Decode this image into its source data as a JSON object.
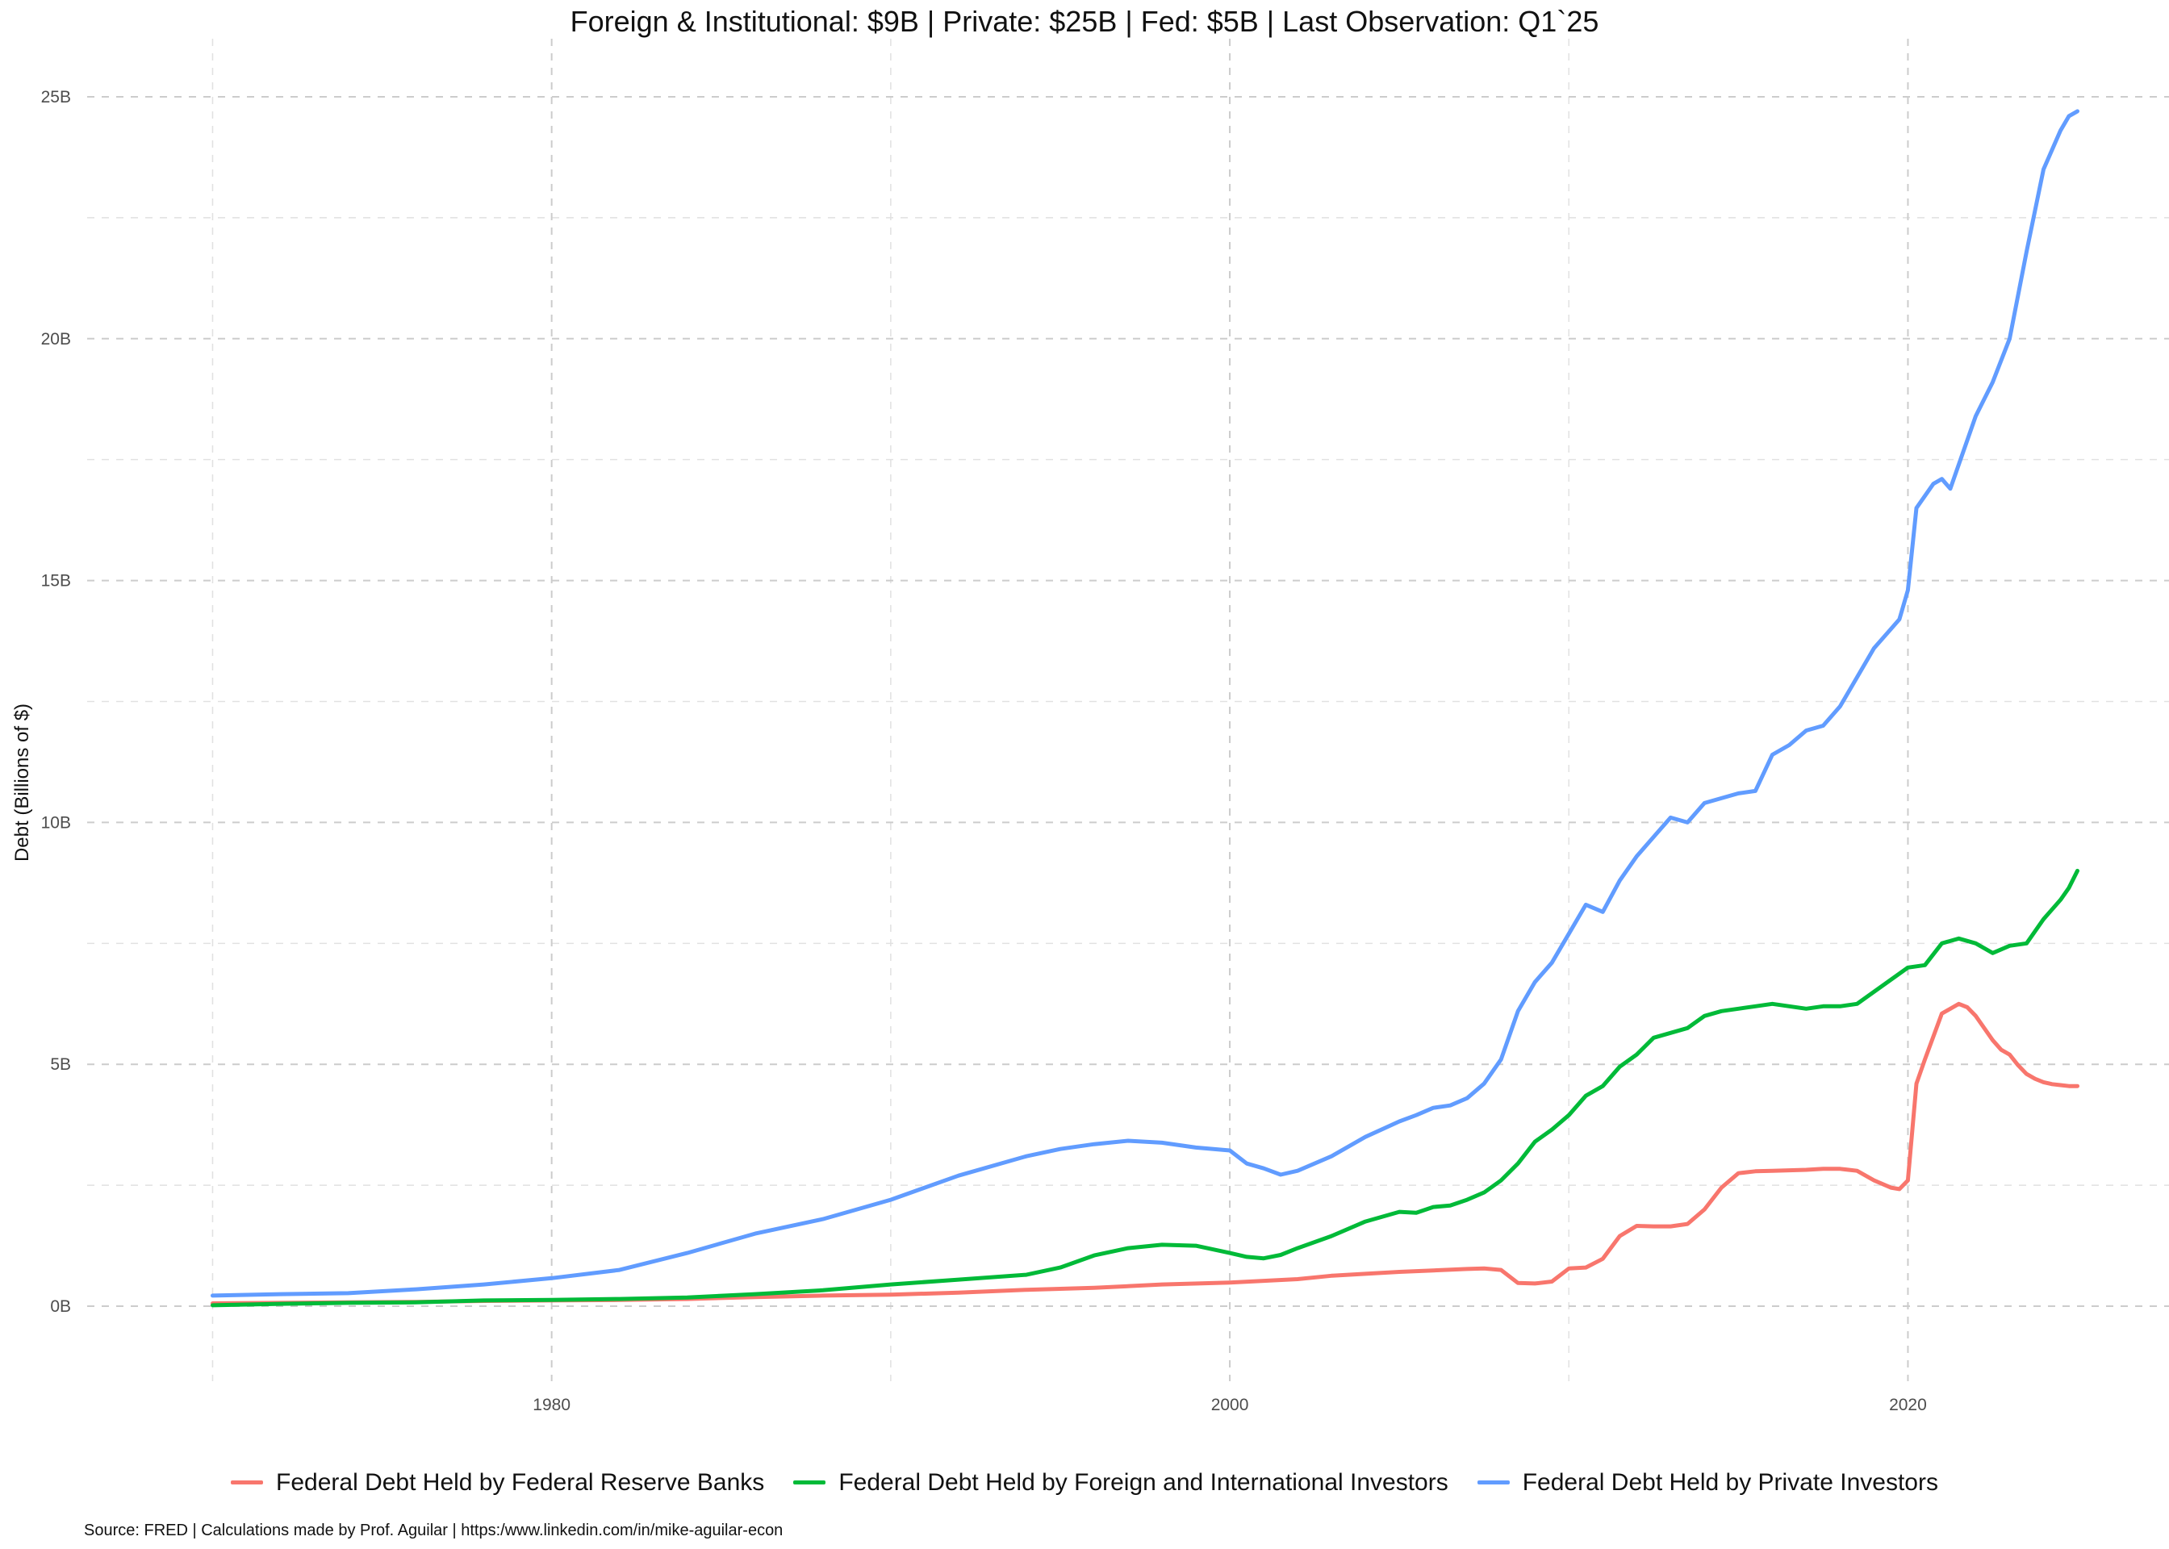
{
  "chart_data": {
    "type": "line",
    "title": "Foreign & Institutional: $9B | Private: $25B | Fed: $5B | Last Observation: Q1`25",
    "xlabel": "",
    "ylabel": "Debt (Billions of $)",
    "xlim": [
      1966.3,
      2027.7
    ],
    "ylim": [
      -1.55,
      26.2
    ],
    "grid": true,
    "legend_position": "bottom",
    "x_ticks": [
      1980,
      2000,
      2020
    ],
    "x_tick_labels": [
      "1980",
      "2000",
      "2020"
    ],
    "y_ticks": [
      0,
      5,
      10,
      15,
      20,
      25
    ],
    "y_tick_labels": [
      "0B",
      "5B",
      "10B",
      "15B",
      "20B",
      "25B"
    ],
    "caption": "Source: FRED | Calculations made by Prof. Aguilar | https:/www.linkedin.com/in/mike-aguilar-econ",
    "series": [
      {
        "name": "Federal Debt Held by Federal Reserve Banks",
        "color": "#F8766D",
        "x": [
          1970,
          1972,
          1974,
          1976,
          1978,
          1980,
          1982,
          1984,
          1986,
          1988,
          1990,
          1992,
          1994,
          1996,
          1998,
          2000,
          2002,
          2003,
          2004,
          2005,
          2006,
          2007,
          2007.5,
          2008,
          2008.5,
          2009,
          2009.5,
          2010,
          2010.5,
          2011,
          2011.5,
          2012,
          2012.5,
          2013,
          2013.5,
          2014,
          2014.5,
          2015,
          2015.5,
          2016,
          2016.5,
          2017,
          2017.5,
          2018,
          2018.5,
          2019,
          2019.5,
          2019.75,
          2020,
          2020.25,
          2020.5,
          2021,
          2021.5,
          2021.75,
          2022,
          2022.25,
          2022.5,
          2022.75,
          2023,
          2023.25,
          2023.5,
          2023.75,
          2024,
          2024.25,
          2024.5,
          2024.75,
          2025
        ],
        "values": [
          0.06,
          0.07,
          0.08,
          0.09,
          0.11,
          0.12,
          0.13,
          0.15,
          0.19,
          0.22,
          0.24,
          0.28,
          0.34,
          0.38,
          0.45,
          0.49,
          0.56,
          0.63,
          0.67,
          0.71,
          0.74,
          0.77,
          0.78,
          0.75,
          0.48,
          0.47,
          0.51,
          0.78,
          0.8,
          0.98,
          1.45,
          1.66,
          1.65,
          1.65,
          1.7,
          2.0,
          2.45,
          2.75,
          2.79,
          2.8,
          2.81,
          2.82,
          2.84,
          2.84,
          2.8,
          2.6,
          2.45,
          2.42,
          2.6,
          4.6,
          5.1,
          6.05,
          6.25,
          6.18,
          6.0,
          5.75,
          5.5,
          5.3,
          5.2,
          4.98,
          4.8,
          4.7,
          4.63,
          4.59,
          4.57,
          4.55,
          4.55
        ]
      },
      {
        "name": "Federal Debt Held by Foreign and International Investors",
        "color": "#00BA38",
        "x": [
          1970,
          1972,
          1974,
          1976,
          1978,
          1980,
          1982,
          1984,
          1986,
          1988,
          1990,
          1992,
          1994,
          1995,
          1996,
          1997,
          1998,
          1999,
          2000,
          2000.5,
          2001,
          2001.5,
          2002,
          2003,
          2004,
          2005,
          2005.5,
          2006,
          2006.5,
          2007,
          2007.5,
          2008,
          2008.5,
          2009,
          2009.5,
          2010,
          2010.5,
          2011,
          2011.5,
          2012,
          2012.5,
          2013,
          2013.5,
          2014,
          2014.5,
          2015,
          2015.5,
          2016,
          2016.5,
          2017,
          2017.5,
          2018,
          2018.5,
          2019,
          2019.5,
          2020,
          2020.5,
          2021,
          2021.5,
          2022,
          2022.5,
          2023,
          2023.5,
          2024,
          2024.5,
          2024.75,
          2025
        ],
        "values": [
          0.02,
          0.05,
          0.07,
          0.08,
          0.12,
          0.13,
          0.15,
          0.18,
          0.25,
          0.33,
          0.45,
          0.55,
          0.65,
          0.8,
          1.05,
          1.2,
          1.27,
          1.25,
          1.1,
          1.02,
          0.99,
          1.06,
          1.2,
          1.45,
          1.75,
          1.95,
          1.93,
          2.05,
          2.08,
          2.2,
          2.35,
          2.6,
          2.95,
          3.4,
          3.65,
          3.95,
          4.35,
          4.55,
          4.95,
          5.2,
          5.55,
          5.65,
          5.75,
          6.0,
          6.1,
          6.15,
          6.2,
          6.25,
          6.2,
          6.15,
          6.2,
          6.2,
          6.25,
          6.5,
          6.75,
          7.0,
          7.05,
          7.5,
          7.6,
          7.5,
          7.3,
          7.45,
          7.5,
          8.0,
          8.4,
          8.65,
          9.0
        ]
      },
      {
        "name": "Federal Debt Held by Private Investors",
        "color": "#619CFF",
        "x": [
          1970,
          1972,
          1974,
          1976,
          1978,
          1980,
          1982,
          1984,
          1986,
          1988,
          1990,
          1992,
          1994,
          1995,
          1996,
          1997,
          1998,
          1999,
          2000,
          2000.5,
          2001,
          2001.5,
          2002,
          2003,
          2004,
          2005,
          2005.5,
          2006,
          2006.5,
          2007,
          2007.5,
          2008,
          2008.5,
          2009,
          2009.5,
          2010,
          2010.5,
          2011,
          2011.5,
          2012,
          2012.5,
          2013,
          2013.5,
          2014,
          2014.5,
          2015,
          2015.5,
          2016,
          2016.5,
          2017,
          2017.5,
          2018,
          2018.5,
          2019,
          2019.5,
          2019.75,
          2020,
          2020.25,
          2020.75,
          2021,
          2021.25,
          2021.5,
          2022,
          2022.5,
          2023,
          2023.5,
          2024,
          2024.5,
          2024.75,
          2025
        ],
        "values": [
          0.22,
          0.25,
          0.27,
          0.35,
          0.45,
          0.58,
          0.75,
          1.1,
          1.5,
          1.8,
          2.2,
          2.7,
          3.1,
          3.25,
          3.35,
          3.42,
          3.38,
          3.28,
          3.22,
          2.95,
          2.85,
          2.72,
          2.8,
          3.1,
          3.5,
          3.82,
          3.95,
          4.1,
          4.15,
          4.3,
          4.6,
          5.1,
          6.1,
          6.7,
          7.1,
          7.7,
          8.3,
          8.15,
          8.8,
          9.3,
          9.7,
          10.1,
          10.0,
          10.4,
          10.5,
          10.6,
          10.65,
          11.4,
          11.6,
          11.9,
          12.0,
          12.4,
          13.0,
          13.6,
          14.0,
          14.2,
          14.8,
          16.5,
          17.0,
          17.1,
          16.9,
          17.4,
          18.4,
          19.1,
          20.0,
          21.8,
          23.5,
          24.3,
          24.6,
          24.7
        ]
      }
    ]
  }
}
